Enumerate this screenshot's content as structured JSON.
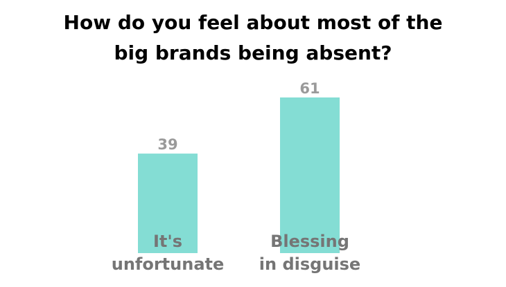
{
  "chart_data": {
    "type": "bar",
    "title_lines": [
      "How do you feel about most of the",
      "big brands being absent?"
    ],
    "categories": [
      [
        "It's",
        "unfortunate"
      ],
      [
        "Blessing",
        "in disguise"
      ]
    ],
    "values": [
      39,
      61
    ],
    "data_labels": [
      "39",
      "61"
    ],
    "ylim": [
      0,
      100
    ],
    "grid": false,
    "legend": "none",
    "bar_color": "#84ddd4",
    "value_label_color": "#9a9a9a",
    "category_label_color": "#757575",
    "title_color": "#000000"
  }
}
